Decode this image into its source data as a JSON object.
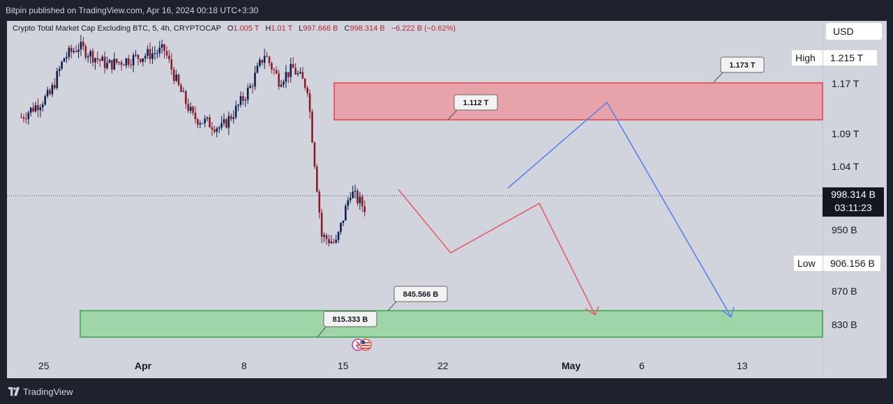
{
  "header": {
    "published": "Bitpin published on TradingView.com, Apr 16, 2024 00:18 UTC+3:30"
  },
  "legend": {
    "title": "Crypto Total Market Cap Excluding BTC, 5, 4h, CRYPTOCAP",
    "o_key": "O",
    "o_val": "1.005 T",
    "h_key": "H",
    "h_val": "1.01 T",
    "l_key": "L",
    "l_val": "997.666 B",
    "c_key": "C",
    "c_val": "998.314 B",
    "change": "−6.222 B (−0.62%)"
  },
  "currency": "USD",
  "price_axis": {
    "ticks": [
      "1.17 T",
      "1.09 T",
      "1.04 T",
      "950 B",
      "870 B",
      "830 B"
    ],
    "high_label": "High",
    "high_value": "1.215 T",
    "low_label": "Low",
    "low_value": "906.156 B",
    "last_price": "998.314 B",
    "countdown": "03:11:23"
  },
  "date_axis": [
    "25",
    "Apr",
    "8",
    "15",
    "22",
    "May",
    "6",
    "13"
  ],
  "annotations": {
    "a1": "1.173 T",
    "a2": "1.112 T",
    "a3": "845.566 B",
    "a4": "815.333 B"
  },
  "footer": {
    "brand": "TradingView"
  },
  "colors": {
    "candle_down": "#8c1b2a",
    "candle_up": "#0a1f4f",
    "resistance_zone": "#e79aa3",
    "support_zone": "#9bd3a5",
    "bearish_path": "#e0606c",
    "bullish_path": "#5b82e9"
  },
  "chart_data": {
    "type": "candlestick",
    "symbol": "Crypto Total Market Cap Excluding BTC",
    "interval": "4h",
    "x_range": [
      "2024-03-22",
      "2024-05-18"
    ],
    "y_range_approx": [
      800,
      1240
    ],
    "y_unit": "B USD",
    "price_path": [
      [
        "2024-03-23",
        1120
      ],
      [
        "2024-03-25",
        1150
      ],
      [
        "2024-03-26",
        1200
      ],
      [
        "2024-03-27",
        1215
      ],
      [
        "2024-03-29",
        1190
      ],
      [
        "2024-03-31",
        1200
      ],
      [
        "2024-04-02",
        1210
      ],
      [
        "2024-04-03",
        1160
      ],
      [
        "2024-04-04",
        1120
      ],
      [
        "2024-04-06",
        1105
      ],
      [
        "2024-04-07",
        1130
      ],
      [
        "2024-04-08",
        1160
      ],
      [
        "2024-04-09",
        1205
      ],
      [
        "2024-04-10",
        1170
      ],
      [
        "2024-04-11",
        1185
      ],
      [
        "2024-04-12",
        1160
      ],
      [
        "2024-04-13",
        960
      ],
      [
        "2024-04-14",
        950
      ],
      [
        "2024-04-15",
        1020
      ],
      [
        "2024-04-16",
        998.314
      ]
    ],
    "current_price": 998.314,
    "high": 1215,
    "low": 906.156,
    "resistance_zone": [
      1112,
      1173
    ],
    "support_zone": [
      815.333,
      845.566
    ],
    "projections": [
      {
        "color": "red",
        "points": [
          [
            "2024-04-19",
            1000
          ],
          [
            "2024-04-25",
            950
          ],
          [
            "2024-05-01",
            990
          ],
          [
            "2024-05-06",
            830
          ]
        ]
      },
      {
        "color": "blue",
        "points": [
          [
            "2024-04-28",
            1010
          ],
          [
            "2024-05-07",
            1135
          ],
          [
            "2024-05-14",
            830
          ]
        ]
      }
    ]
  }
}
